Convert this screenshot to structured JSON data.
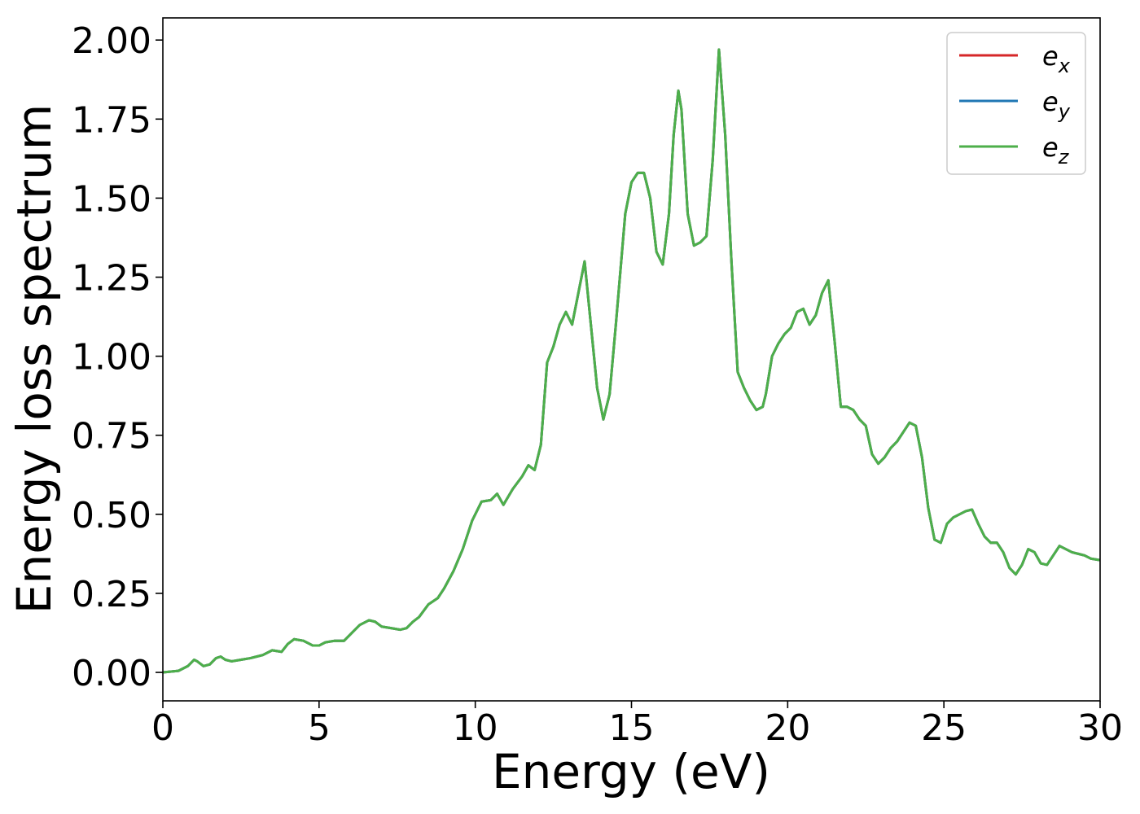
{
  "chart_data": {
    "type": "line",
    "title": "",
    "xlabel": "Energy (eV)",
    "ylabel": "Energy loss spectrum",
    "xlim": [
      0,
      30
    ],
    "ylim": [
      -0.09,
      2.07
    ],
    "xticks": [
      0,
      5,
      10,
      15,
      20,
      25,
      30
    ],
    "xtick_labels": [
      "0",
      "5",
      "10",
      "15",
      "20",
      "25",
      "30"
    ],
    "yticks": [
      0,
      0.25,
      0.5,
      0.75,
      1.0,
      1.25,
      1.5,
      1.75,
      2.0
    ],
    "ytick_labels": [
      "0.00",
      "0.25",
      "0.50",
      "0.75",
      "1.00",
      "1.25",
      "1.50",
      "1.75",
      "2.00"
    ],
    "grid": false,
    "legend_position": "top-right",
    "x": [
      0,
      0.5,
      0.8,
      1.0,
      1.1,
      1.3,
      1.5,
      1.7,
      1.85,
      2.0,
      2.2,
      2.5,
      2.8,
      3.0,
      3.2,
      3.5,
      3.8,
      4.0,
      4.2,
      4.5,
      4.8,
      5.0,
      5.2,
      5.5,
      5.8,
      6.0,
      6.3,
      6.6,
      6.8,
      7.0,
      7.3,
      7.6,
      7.8,
      8.0,
      8.2,
      8.5,
      8.8,
      9.0,
      9.3,
      9.6,
      9.9,
      10.2,
      10.5,
      10.7,
      10.9,
      11.2,
      11.5,
      11.7,
      11.9,
      12.1,
      12.3,
      12.5,
      12.7,
      12.9,
      13.1,
      13.3,
      13.5,
      13.7,
      13.9,
      14.1,
      14.3,
      14.5,
      14.8,
      15.0,
      15.2,
      15.4,
      15.6,
      15.8,
      16.0,
      16.2,
      16.35,
      16.5,
      16.6,
      16.8,
      17.0,
      17.2,
      17.4,
      17.6,
      17.8,
      18.0,
      18.2,
      18.4,
      18.6,
      18.8,
      19.0,
      19.2,
      19.3,
      19.5,
      19.7,
      19.9,
      20.1,
      20.3,
      20.5,
      20.7,
      20.9,
      21.1,
      21.3,
      21.5,
      21.7,
      21.9,
      22.1,
      22.3,
      22.5,
      22.7,
      22.9,
      23.1,
      23.3,
      23.5,
      23.7,
      23.9,
      24.1,
      24.3,
      24.5,
      24.7,
      24.9,
      25.1,
      25.3,
      25.5,
      25.7,
      25.9,
      26.1,
      26.3,
      26.5,
      26.7,
      26.9,
      27.1,
      27.3,
      27.5,
      27.7,
      27.9,
      28.1,
      28.3,
      28.5,
      28.7,
      28.9,
      29.1,
      29.3,
      29.5,
      29.7,
      30.0
    ],
    "series": [
      {
        "name": "e_x",
        "color": "#d62728",
        "values": "same_as_e_z"
      },
      {
        "name": "e_y",
        "color": "#1f77b4",
        "values": "same_as_e_z"
      },
      {
        "name": "e_z",
        "color": "#4daf4a",
        "values": [
          0.0,
          0.005,
          0.02,
          0.04,
          0.035,
          0.02,
          0.025,
          0.045,
          0.05,
          0.04,
          0.035,
          0.04,
          0.045,
          0.05,
          0.055,
          0.07,
          0.065,
          0.09,
          0.105,
          0.1,
          0.085,
          0.085,
          0.095,
          0.1,
          0.1,
          0.12,
          0.15,
          0.165,
          0.16,
          0.145,
          0.14,
          0.135,
          0.14,
          0.16,
          0.175,
          0.215,
          0.235,
          0.265,
          0.32,
          0.39,
          0.48,
          0.54,
          0.545,
          0.565,
          0.53,
          0.58,
          0.62,
          0.655,
          0.64,
          0.72,
          0.98,
          1.03,
          1.1,
          1.14,
          1.1,
          1.2,
          1.3,
          1.1,
          0.9,
          0.8,
          0.88,
          1.1,
          1.45,
          1.55,
          1.58,
          1.58,
          1.5,
          1.33,
          1.29,
          1.45,
          1.7,
          1.84,
          1.78,
          1.45,
          1.35,
          1.36,
          1.38,
          1.62,
          1.97,
          1.7,
          1.3,
          0.95,
          0.9,
          0.86,
          0.83,
          0.84,
          0.88,
          1.0,
          1.04,
          1.07,
          1.09,
          1.14,
          1.15,
          1.1,
          1.13,
          1.2,
          1.24,
          1.05,
          0.84,
          0.84,
          0.83,
          0.8,
          0.78,
          0.69,
          0.66,
          0.68,
          0.71,
          0.73,
          0.76,
          0.79,
          0.78,
          0.68,
          0.52,
          0.42,
          0.41,
          0.47,
          0.49,
          0.5,
          0.51,
          0.515,
          0.47,
          0.43,
          0.41,
          0.41,
          0.38,
          0.33,
          0.31,
          0.34,
          0.39,
          0.38,
          0.345,
          0.34,
          0.37,
          0.4,
          0.39,
          0.38,
          0.375,
          0.37,
          0.36,
          0.355
        ]
      }
    ],
    "legend": [
      {
        "base": "e",
        "sub": "x",
        "color": "#d62728"
      },
      {
        "base": "e",
        "sub": "y",
        "color": "#1f77b4"
      },
      {
        "base": "e",
        "sub": "z",
        "color": "#4daf4a"
      }
    ]
  }
}
